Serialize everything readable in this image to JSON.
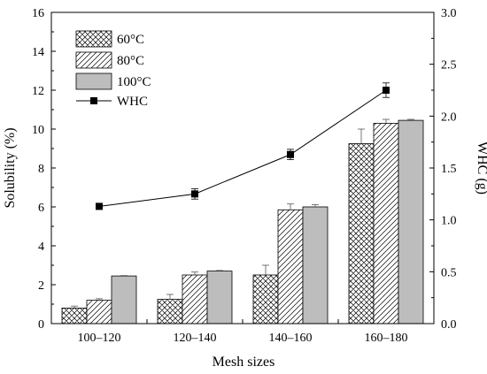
{
  "chart_data": {
    "type": "bar",
    "xlabel": "Mesh sizes",
    "ylabel": "Solubility (%)",
    "y2label": "WHC (g)",
    "categories": [
      "100–120",
      "120–140",
      "140–160",
      "160–180"
    ],
    "ylim": [
      0,
      16
    ],
    "yticks": [
      0,
      2,
      4,
      6,
      8,
      10,
      12,
      14,
      16
    ],
    "y2lim": [
      0,
      3.0
    ],
    "y2ticks": [
      "0.0",
      "0.5",
      "1.0",
      "1.5",
      "2.0",
      "2.5",
      "3.0"
    ],
    "series": [
      {
        "name": "60°C",
        "pattern": "crosshatch",
        "values": [
          0.8,
          1.25,
          2.5,
          9.25
        ],
        "errors": [
          0.1,
          0.25,
          0.5,
          0.75
        ]
      },
      {
        "name": "80°C",
        "pattern": "diagonal",
        "values": [
          1.2,
          2.5,
          5.85,
          10.3
        ],
        "errors": [
          0.08,
          0.15,
          0.3,
          0.2
        ]
      },
      {
        "name": "100°C",
        "pattern": "solid-gray",
        "values": [
          2.45,
          2.7,
          6.0,
          10.45
        ],
        "errors": [
          0.02,
          0.03,
          0.12,
          0.05
        ]
      }
    ],
    "line_series": {
      "name": "WHC",
      "axis": "right",
      "values": [
        1.13,
        1.25,
        1.63,
        2.25
      ],
      "errors": [
        0.02,
        0.05,
        0.05,
        0.07
      ]
    },
    "legend_position": "top-left",
    "grid": false
  },
  "colors": {
    "gray_fill": "#bdbdbd",
    "stroke": "#000000"
  }
}
